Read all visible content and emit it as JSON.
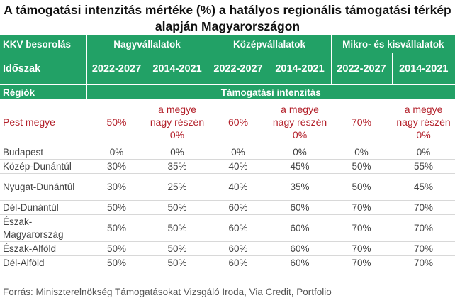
{
  "title": "A támogatási intenzitás mértéke (%) a hatályos regionális támogatási térkép alapján Magyarországon",
  "header": {
    "kkv_label": "KKV besorolás",
    "groups": [
      "Nagyvállalatok",
      "Középvállalatok",
      "Mikro- és kisvállalatok"
    ],
    "period_label": "Időszak",
    "periods": [
      "2022-2027",
      "2014-2021",
      "2022-2027",
      "2014-2021",
      "2022-2027",
      "2014-2021"
    ],
    "regions_label": "Régiók",
    "intensity_label": "Támogatási intenzitás"
  },
  "rows": [
    {
      "region": "Pest megye",
      "values": [
        "50%",
        "a megye nagy részén 0%",
        "60%",
        "a megye nagy részén 0%",
        "70%",
        "a megye nagy részén 0%"
      ]
    },
    {
      "region": "Budapest",
      "values": [
        "0%",
        "0%",
        "0%",
        "0%",
        "0%",
        "0%"
      ]
    },
    {
      "region": "Közép-Dunántúl",
      "values": [
        "30%",
        "35%",
        "40%",
        "45%",
        "50%",
        "55%"
      ]
    },
    {
      "region": "Nyugat-Dunántúl",
      "values": [
        "30%",
        "25%",
        "40%",
        "35%",
        "50%",
        "45%"
      ]
    },
    {
      "region": "Dél-Dunántúl",
      "values": [
        "50%",
        "50%",
        "60%",
        "60%",
        "70%",
        "70%"
      ]
    },
    {
      "region": "Észak-Magyarország",
      "values": [
        "50%",
        "50%",
        "60%",
        "60%",
        "70%",
        "70%"
      ]
    },
    {
      "region": "Észak-Alföld",
      "values": [
        "50%",
        "50%",
        "60%",
        "60%",
        "70%",
        "70%"
      ]
    },
    {
      "region": "Dél-Alföld",
      "values": [
        "50%",
        "50%",
        "60%",
        "60%",
        "70%",
        "70%"
      ]
    }
  ],
  "source": "Forrás: Miniszterelnökség Támogatásokat Vizsgáló Iroda, Via Credit, Portfolio",
  "colors": {
    "header_bg": "#22a166",
    "highlight_text": "#b3202a"
  }
}
